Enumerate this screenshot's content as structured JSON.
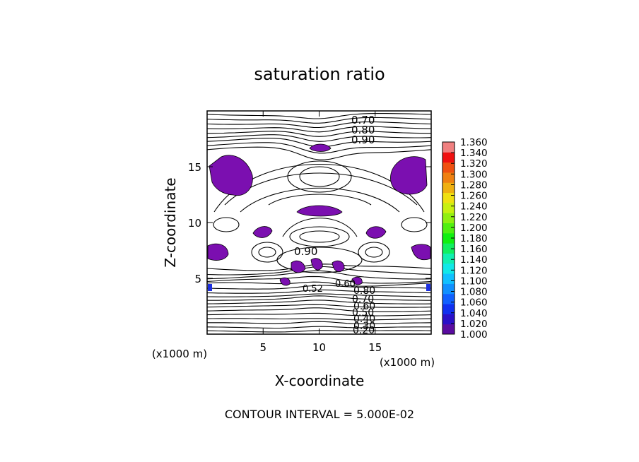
{
  "chart_data": {
    "type": "heatmap",
    "title": "saturation ratio",
    "xlabel": "X-coordinate",
    "ylabel": "Z-coordinate",
    "x_unit": "(x1000 m)",
    "z_unit": "(x1000 m)",
    "xlim": [
      0,
      20
    ],
    "ylim": [
      0,
      20
    ],
    "x_ticks": [
      5,
      10,
      15
    ],
    "y_ticks": [
      5,
      10,
      15
    ],
    "footer": "CONTOUR INTERVAL = 5.000E-02",
    "colorbar": {
      "min": 1.0,
      "max": 1.36,
      "levels": [
        "1.000",
        "1.020",
        "1.040",
        "1.060",
        "1.080",
        "1.100",
        "1.120",
        "1.140",
        "1.160",
        "1.180",
        "1.200",
        "1.220",
        "1.240",
        "1.260",
        "1.280",
        "1.300",
        "1.320",
        "1.340",
        "1.360"
      ],
      "colors": [
        "#5a0ca0",
        "#2a10c8",
        "#1030f0",
        "#1060ff",
        "#1090ff",
        "#10c0ff",
        "#10e8e8",
        "#10f0b0",
        "#10f060",
        "#10f010",
        "#50f010",
        "#90f010",
        "#c8f010",
        "#f0e010",
        "#f0b010",
        "#f08010",
        "#f05010",
        "#f01010",
        "#f08080"
      ]
    },
    "contour_labels_top": [
      "0.70",
      "0.80",
      "0.90"
    ],
    "contour_label_mid": "0.90",
    "contour_labels_bottom": [
      "0.80",
      "0.70",
      "0.60",
      "0.50",
      "0.40",
      "0.30",
      "0.20"
    ],
    "contour_labels_center": [
      "0.52",
      "0.60"
    ],
    "fill_color": "#7b0fb0"
  }
}
